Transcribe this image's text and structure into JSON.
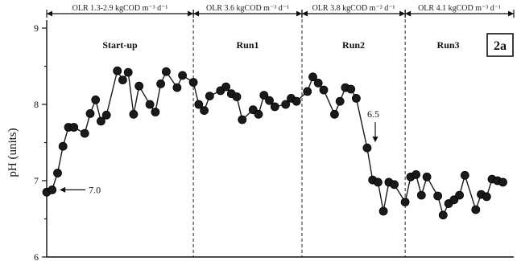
{
  "chart_data": {
    "type": "line",
    "ylabel": "pH (units)",
    "ylim": [
      6,
      9
    ],
    "yticks": [
      6,
      7,
      8,
      9
    ],
    "xlim": [
      0,
      86
    ],
    "grid": false,
    "panel_label": "2a",
    "phases": [
      {
        "name": "Start-up",
        "olr": "OLR 1.3-2.9 kgCOD m⁻³ d⁻¹",
        "start": 0,
        "end": 27
      },
      {
        "name": "Run1",
        "olr": "OLR 3.6 kgCOD m⁻³ d⁻¹",
        "start": 27,
        "end": 47
      },
      {
        "name": "Run2",
        "olr": "OLR 3.8 kgCOD m⁻³ d⁻¹",
        "start": 47,
        "end": 66
      },
      {
        "name": "Run3",
        "olr": "OLR 4.1 kgCOD m⁻³ d⁻¹",
        "start": 66,
        "end": 86
      }
    ],
    "annotations": [
      {
        "text": "7.0",
        "x": 1.5,
        "y": 6.88
      },
      {
        "text": "6.5",
        "x": 60.5,
        "y": 7.43
      }
    ],
    "series": [
      {
        "x": [
          0,
          1,
          2,
          3,
          4,
          5,
          7,
          8,
          9,
          10,
          11,
          13,
          14,
          15,
          16,
          17,
          19,
          20,
          21,
          22,
          24,
          25,
          27,
          28,
          29,
          30,
          32,
          33,
          34,
          35,
          36,
          38,
          39,
          40,
          41,
          42,
          44,
          45,
          46,
          48,
          49,
          50,
          51,
          53,
          54,
          55,
          56,
          57,
          59,
          60,
          61,
          62,
          63,
          64,
          66,
          67,
          68,
          69,
          70,
          72,
          73,
          74,
          75,
          76,
          77,
          79,
          80,
          81,
          82,
          83,
          84
        ],
        "y": [
          6.85,
          6.88,
          7.1,
          7.45,
          7.7,
          7.7,
          7.62,
          7.88,
          8.06,
          7.78,
          7.86,
          8.44,
          8.32,
          8.42,
          7.87,
          8.24,
          8.0,
          7.9,
          8.27,
          8.43,
          8.22,
          8.38,
          8.29,
          8.0,
          7.92,
          8.11,
          8.18,
          8.23,
          8.14,
          8.1,
          7.8,
          7.93,
          7.87,
          8.12,
          8.05,
          7.97,
          8.0,
          8.08,
          8.04,
          8.17,
          8.36,
          8.28,
          8.19,
          7.87,
          8.04,
          8.22,
          8.2,
          8.08,
          7.43,
          7.01,
          6.98,
          6.6,
          6.98,
          6.95,
          6.72,
          7.05,
          7.08,
          6.81,
          7.05,
          6.8,
          6.55,
          6.7,
          6.75,
          6.81,
          7.07,
          6.62,
          6.82,
          6.79,
          7.02,
          7.0,
          6.98
        ]
      }
    ]
  }
}
